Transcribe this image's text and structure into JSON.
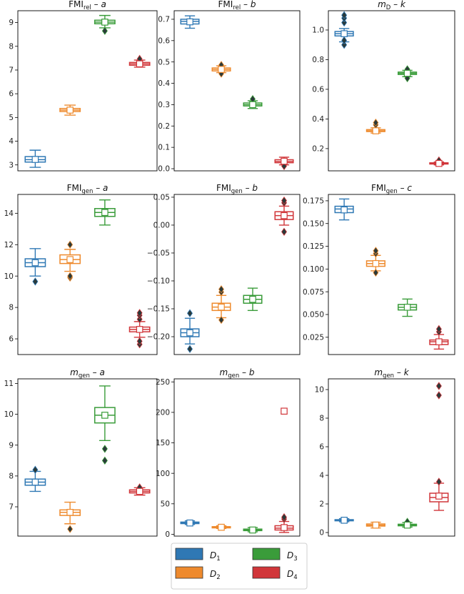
{
  "colors": {
    "D1": "#2f78b4",
    "D2": "#ee8a2d",
    "D3": "#3a9c3a",
    "D4": "#d1363a"
  },
  "legend": {
    "entries": [
      {
        "key": "D1",
        "label": "D",
        "sub": "1"
      },
      {
        "key": "D2",
        "label": "D",
        "sub": "2"
      },
      {
        "key": "D3",
        "label": "D",
        "sub": "3"
      },
      {
        "key": "D4",
        "label": "D",
        "sub": "4"
      }
    ]
  },
  "chart_data": [
    {
      "type": "box",
      "title": {
        "main": "FMI",
        "sub": "rel",
        "sep": " – ",
        "param": "a",
        "italic_main": false
      },
      "ylim": [
        2.75,
        9.5
      ],
      "yticks": [
        3,
        4,
        5,
        6,
        7,
        8,
        9
      ],
      "tick_labels": [
        "3",
        "4",
        "5",
        "6",
        "7",
        "8",
        "9"
      ],
      "series": [
        {
          "name": "D1",
          "whislo": 2.9,
          "q1": 3.12,
          "med": 3.22,
          "q3": 3.35,
          "whishi": 3.62,
          "mean": 3.23,
          "fliers": []
        },
        {
          "name": "D2",
          "whislo": 5.1,
          "q1": 5.25,
          "med": 5.31,
          "q3": 5.38,
          "whishi": 5.52,
          "mean": 5.31,
          "fliers": []
        },
        {
          "name": "D3",
          "whislo": 8.78,
          "q1": 8.95,
          "med": 9.02,
          "q3": 9.1,
          "whishi": 9.3,
          "mean": 9.02,
          "fliers": [
            8.65
          ]
        },
        {
          "name": "D4",
          "whislo": 7.12,
          "q1": 7.2,
          "med": 7.26,
          "q3": 7.32,
          "whishi": 7.42,
          "mean": 7.26,
          "fliers": [
            7.47
          ]
        }
      ]
    },
    {
      "type": "box",
      "title": {
        "main": "FMI",
        "sub": "rel",
        "sep": " – ",
        "param": "b",
        "italic_main": false
      },
      "ylim": [
        -0.01,
        0.74
      ],
      "yticks": [
        0.0,
        0.1,
        0.2,
        0.3,
        0.4,
        0.5,
        0.6,
        0.7
      ],
      "tick_labels": [
        "0.0",
        "0.1",
        "0.2",
        "0.3",
        "0.4",
        "0.5",
        "0.6",
        "0.7"
      ],
      "series": [
        {
          "name": "D1",
          "whislo": 0.658,
          "q1": 0.678,
          "med": 0.69,
          "q3": 0.7,
          "whishi": 0.716,
          "mean": 0.688,
          "fliers": []
        },
        {
          "name": "D2",
          "whislo": 0.45,
          "q1": 0.458,
          "med": 0.465,
          "q3": 0.472,
          "whishi": 0.482,
          "mean": 0.465,
          "fliers": [
            0.445,
            0.486
          ]
        },
        {
          "name": "D3",
          "whislo": 0.282,
          "q1": 0.294,
          "med": 0.3,
          "q3": 0.308,
          "whishi": 0.318,
          "mean": 0.3,
          "fliers": [
            0.326
          ]
        },
        {
          "name": "D4",
          "whislo": 0.018,
          "q1": 0.028,
          "med": 0.034,
          "q3": 0.042,
          "whishi": 0.054,
          "mean": 0.035,
          "fliers": [
            0.012
          ]
        }
      ]
    },
    {
      "type": "box",
      "title": {
        "main": "m",
        "sub": "D",
        "sep": " – ",
        "param": "k",
        "italic_main": true
      },
      "ylim": [
        0.05,
        1.13
      ],
      "yticks": [
        0.2,
        0.4,
        0.6,
        0.8,
        1.0
      ],
      "tick_labels": [
        "0.2",
        "0.4",
        "0.6",
        "0.8",
        "1.0"
      ],
      "series": [
        {
          "name": "D1",
          "whislo": 0.92,
          "q1": 0.96,
          "med": 0.975,
          "q3": 0.99,
          "whishi": 1.01,
          "mean": 0.975,
          "fliers": [
            0.9,
            0.93,
            1.05,
            1.08,
            1.1
          ]
        },
        {
          "name": "D2",
          "whislo": 0.305,
          "q1": 0.315,
          "med": 0.32,
          "q3": 0.328,
          "whishi": 0.34,
          "mean": 0.32,
          "fliers": [
            0.36,
            0.375
          ]
        },
        {
          "name": "D3",
          "whislo": 0.685,
          "q1": 0.7,
          "med": 0.708,
          "q3": 0.716,
          "whishi": 0.728,
          "mean": 0.708,
          "fliers": [
            0.675,
            0.735
          ]
        },
        {
          "name": "D4",
          "whislo": 0.09,
          "q1": 0.096,
          "med": 0.1,
          "q3": 0.104,
          "whishi": 0.11,
          "mean": 0.1,
          "fliers": [
            0.12
          ]
        }
      ]
    },
    {
      "type": "box",
      "title": {
        "main": "FMI",
        "sub": "gen",
        "sep": " – ",
        "param": "a",
        "italic_main": false
      },
      "ylim": [
        5.0,
        15.2
      ],
      "yticks": [
        6,
        8,
        10,
        12,
        14
      ],
      "tick_labels": [
        "6",
        "8",
        "10",
        "12",
        "14"
      ],
      "series": [
        {
          "name": "D1",
          "whislo": 10.0,
          "q1": 10.6,
          "med": 10.85,
          "q3": 11.1,
          "whishi": 11.75,
          "mean": 10.85,
          "fliers": [
            9.65
          ]
        },
        {
          "name": "D2",
          "whislo": 10.3,
          "q1": 10.8,
          "med": 11.05,
          "q3": 11.35,
          "whishi": 11.7,
          "mean": 11.05,
          "fliers": [
            9.9,
            10.0,
            12.0
          ]
        },
        {
          "name": "D3",
          "whislo": 13.25,
          "q1": 13.8,
          "med": 14.05,
          "q3": 14.3,
          "whishi": 14.85,
          "mean": 14.05,
          "fliers": []
        },
        {
          "name": "D4",
          "whislo": 6.1,
          "q1": 6.45,
          "med": 6.6,
          "q3": 6.75,
          "whishi": 7.1,
          "mean": 6.6,
          "fliers": [
            5.65,
            5.85,
            7.25,
            7.5,
            7.65
          ]
        }
      ]
    },
    {
      "type": "box",
      "title": {
        "main": "FMI",
        "sub": "gen",
        "sep": " – ",
        "param": "b",
        "italic_main": false
      },
      "ylim": [
        -0.232,
        0.055
      ],
      "yticks": [
        -0.2,
        -0.15,
        -0.1,
        -0.05,
        0.0,
        0.05
      ],
      "tick_labels": [
        "−0.20",
        "−0.15",
        "−0.10",
        "−0.05",
        "0.00",
        "0.05"
      ],
      "series": [
        {
          "name": "D1",
          "whislo": -0.213,
          "q1": -0.2,
          "med": -0.193,
          "q3": -0.186,
          "whishi": -0.167,
          "mean": -0.193,
          "fliers": [
            -0.222,
            -0.158
          ]
        },
        {
          "name": "D2",
          "whislo": -0.166,
          "q1": -0.153,
          "med": -0.147,
          "q3": -0.14,
          "whishi": -0.126,
          "mean": -0.147,
          "fliers": [
            -0.17,
            -0.12,
            -0.115
          ]
        },
        {
          "name": "D3",
          "whislo": -0.153,
          "q1": -0.14,
          "med": -0.133,
          "q3": -0.126,
          "whishi": -0.113,
          "mean": -0.133,
          "fliers": []
        },
        {
          "name": "D4",
          "whislo": 0.0,
          "q1": 0.01,
          "med": 0.017,
          "q3": 0.024,
          "whishi": 0.034,
          "mean": 0.017,
          "fliers": [
            -0.012,
            0.04,
            0.044
          ]
        }
      ]
    },
    {
      "type": "box",
      "title": {
        "main": "FMI",
        "sub": "gen",
        "sep": " – ",
        "param": "c",
        "italic_main": false
      },
      "ylim": [
        0.006,
        0.182
      ],
      "yticks": [
        0.025,
        0.05,
        0.075,
        0.1,
        0.125,
        0.15,
        0.175
      ],
      "tick_labels": [
        "0.025",
        "0.050",
        "0.075",
        "0.100",
        "0.125",
        "0.150",
        "0.175"
      ],
      "series": [
        {
          "name": "D1",
          "whislo": 0.154,
          "q1": 0.162,
          "med": 0.166,
          "q3": 0.169,
          "whishi": 0.177,
          "mean": 0.165,
          "fliers": []
        },
        {
          "name": "D2",
          "whislo": 0.098,
          "q1": 0.103,
          "med": 0.106,
          "q3": 0.109,
          "whishi": 0.115,
          "mean": 0.106,
          "fliers": [
            0.096,
            0.117,
            0.12
          ]
        },
        {
          "name": "D3",
          "whislo": 0.048,
          "q1": 0.055,
          "med": 0.058,
          "q3": 0.061,
          "whishi": 0.067,
          "mean": 0.058,
          "fliers": []
        },
        {
          "name": "D4",
          "whislo": 0.012,
          "q1": 0.017,
          "med": 0.02,
          "q3": 0.022,
          "whishi": 0.028,
          "mean": 0.02,
          "fliers": [
            0.031,
            0.034
          ]
        }
      ]
    },
    {
      "type": "box",
      "title": {
        "main": "m",
        "sub": "gen",
        "sep": " – ",
        "param": "a",
        "italic_main": true
      },
      "ylim": [
        6.05,
        11.15
      ],
      "yticks": [
        7,
        8,
        9,
        10,
        11
      ],
      "tick_labels": [
        "7",
        "8",
        "9",
        "10",
        "11"
      ],
      "series": [
        {
          "name": "D1",
          "whislo": 7.5,
          "q1": 7.7,
          "med": 7.8,
          "q3": 7.9,
          "whishi": 8.15,
          "mean": 7.8,
          "fliers": [
            8.2
          ]
        },
        {
          "name": "D2",
          "whislo": 6.45,
          "q1": 6.72,
          "med": 6.82,
          "q3": 6.9,
          "whishi": 7.15,
          "mean": 6.82,
          "fliers": [
            6.28
          ]
        },
        {
          "name": "D3",
          "whislo": 9.15,
          "q1": 9.72,
          "med": 9.97,
          "q3": 10.22,
          "whishi": 10.92,
          "mean": 9.97,
          "fliers": [
            8.5,
            8.88
          ]
        },
        {
          "name": "D4",
          "whislo": 7.38,
          "q1": 7.45,
          "med": 7.5,
          "q3": 7.55,
          "whishi": 7.62,
          "mean": 7.5,
          "fliers": [
            7.63
          ]
        }
      ]
    },
    {
      "type": "box",
      "title": {
        "main": "m",
        "sub": "gen",
        "sep": " – ",
        "param": "b",
        "italic_main": true
      },
      "ylim": [
        -3,
        255
      ],
      "yticks": [
        0,
        50,
        100,
        150,
        200,
        250
      ],
      "tick_labels": [
        "0",
        "50",
        "100",
        "150",
        "200",
        "250"
      ],
      "series": [
        {
          "name": "D1",
          "whislo": 16,
          "q1": 17.5,
          "med": 18.5,
          "q3": 20,
          "whishi": 22,
          "mean": 18.5,
          "fliers": []
        },
        {
          "name": "D2",
          "whislo": 9.5,
          "q1": 10.5,
          "med": 11.5,
          "q3": 12.5,
          "whishi": 14,
          "mean": 11.5,
          "fliers": []
        },
        {
          "name": "D3",
          "whislo": 4,
          "q1": 6,
          "med": 7,
          "q3": 8.5,
          "whishi": 11,
          "mean": 7,
          "fliers": []
        },
        {
          "name": "D4",
          "whislo": 3,
          "q1": 7,
          "med": 10,
          "q3": 14,
          "whishi": 21,
          "mean": 11,
          "mean_hidden_outlier": 202,
          "fliers": [
            25,
            28
          ],
          "extra_mean": 202
        }
      ]
    },
    {
      "type": "box",
      "title": {
        "main": "m",
        "sub": "gen",
        "sep": " – ",
        "param": "k",
        "italic_main": true
      },
      "ylim": [
        -0.25,
        10.75
      ],
      "yticks": [
        0,
        2,
        4,
        6,
        8,
        10
      ],
      "tick_labels": [
        "0",
        "2",
        "4",
        "6",
        "8",
        "10"
      ],
      "series": [
        {
          "name": "D1",
          "whislo": 0.75,
          "q1": 0.82,
          "med": 0.86,
          "q3": 0.9,
          "whishi": 0.97,
          "mean": 0.86,
          "fliers": []
        },
        {
          "name": "D2",
          "whislo": 0.32,
          "q1": 0.45,
          "med": 0.52,
          "q3": 0.6,
          "whishi": 0.72,
          "mean": 0.52,
          "fliers": []
        },
        {
          "name": "D3",
          "whislo": 0.38,
          "q1": 0.47,
          "med": 0.52,
          "q3": 0.58,
          "whishi": 0.7,
          "mean": 0.52,
          "fliers": [
            0.75
          ]
        },
        {
          "name": "D4",
          "whislo": 1.55,
          "q1": 2.15,
          "med": 2.45,
          "q3": 2.75,
          "whishi": 3.45,
          "mean": 2.55,
          "fliers": [
            3.55,
            9.6,
            10.25
          ]
        }
      ]
    }
  ]
}
